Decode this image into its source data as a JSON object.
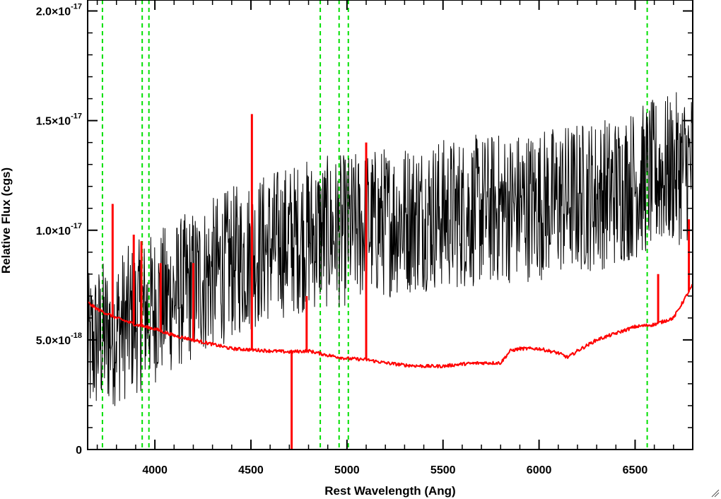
{
  "chart_data": {
    "type": "line",
    "title": "",
    "xlabel": "Rest Wavelength (Ang)",
    "ylabel": "Relative Flux (cgs)",
    "xlim": [
      3650,
      6800
    ],
    "ylim": [
      0,
      2.05e-17
    ],
    "x_ticks": [
      {
        "value": 4000,
        "label": "4000"
      },
      {
        "value": 4500,
        "label": "4500"
      },
      {
        "value": 5000,
        "label": "5000"
      },
      {
        "value": 5500,
        "label": "5500"
      },
      {
        "value": 6000,
        "label": "6000"
      },
      {
        "value": 6500,
        "label": "6500"
      }
    ],
    "y_ticks": [
      {
        "value": 0,
        "mantissa": "0",
        "exponent": ""
      },
      {
        "value": 5e-18,
        "mantissa": "5.0×10",
        "exponent": "-18"
      },
      {
        "value": 1e-17,
        "mantissa": "1.0×10",
        "exponent": "-17"
      },
      {
        "value": 1.5e-17,
        "mantissa": "1.5×10",
        "exponent": "-17"
      },
      {
        "value": 2e-17,
        "mantissa": "2.0×10",
        "exponent": "-17"
      }
    ],
    "grid": false,
    "series": [
      {
        "color": "#000000",
        "style": "noisy",
        "x": [
          3650,
          3700,
          3800,
          3900,
          4000,
          4200,
          4400,
          4600,
          4800,
          5000,
          5200,
          5400,
          5600,
          5800,
          6000,
          6200,
          6400,
          6600,
          6800
        ],
        "y": [
          4.5e-18,
          5e-18,
          5.5e-18,
          6e-18,
          6.5e-18,
          7.5e-18,
          8.5e-18,
          9.3e-18,
          9.8e-18,
          1e-17,
          1.04e-17,
          1.07e-17,
          1.08e-17,
          1.1e-17,
          1.12e-17,
          1.15e-17,
          1.18e-17,
          1.25e-17,
          1.3e-17
        ],
        "noise_amplitude": 3.5e-18
      },
      {
        "color": "#ff0000",
        "style": "error",
        "x": [
          3650,
          3700,
          3800,
          3900,
          4000,
          4100,
          4200,
          4300,
          4400,
          4500,
          4600,
          4700,
          4800,
          4900,
          5000,
          5100,
          5200,
          5300,
          5400,
          5500,
          5600,
          5700,
          5800,
          5850,
          5900,
          6000,
          6100,
          6150,
          6200,
          6300,
          6400,
          6500,
          6600,
          6700,
          6800
        ],
        "y": [
          6.7e-18,
          6.4e-18,
          6e-18,
          5.7e-18,
          5.5e-18,
          5.2e-18,
          5e-18,
          4.8e-18,
          4.6e-18,
          4.55e-18,
          4.5e-18,
          4.45e-18,
          4.5e-18,
          4.3e-18,
          4.15e-18,
          4.1e-18,
          3.95e-18,
          3.85e-18,
          3.8e-18,
          3.8e-18,
          3.9e-18,
          3.95e-18,
          3.95e-18,
          4.5e-18,
          4.6e-18,
          4.6e-18,
          4.4e-18,
          4.2e-18,
          4.5e-18,
          5e-18,
          5.3e-18,
          5.6e-18,
          5.7e-18,
          6e-18,
          7.5e-18
        ],
        "spikes": [
          {
            "x": 3780,
            "y": 1.12e-17
          },
          {
            "x": 3890,
            "y": 9.8e-18
          },
          {
            "x": 3930,
            "y": 9.5e-18
          },
          {
            "x": 4030,
            "y": 8.5e-18
          },
          {
            "x": 4200,
            "y": 8.5e-18
          },
          {
            "x": 4505,
            "y": 1.53e-17
          },
          {
            "x": 4712,
            "y": -5e-19
          },
          {
            "x": 4790,
            "y": 7e-18
          },
          {
            "x": 5100,
            "y": 1.4e-17
          },
          {
            "x": 6620,
            "y": 8e-18
          },
          {
            "x": 6780,
            "y": 1.05e-17
          }
        ]
      }
    ],
    "reference_lines": {
      "color": "#00e000",
      "style": "dashed",
      "x": [
        3727,
        3934,
        3969,
        4861,
        4959,
        5007,
        6563
      ]
    }
  }
}
